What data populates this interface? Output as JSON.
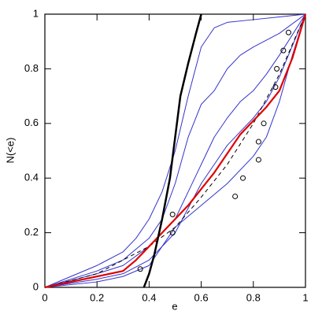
{
  "chart_data": {
    "type": "line",
    "x_label": "e",
    "y_label": "N(<e)",
    "xlim": [
      0,
      1
    ],
    "ylim": [
      0,
      1
    ],
    "xticks": [
      0,
      0.2,
      0.4,
      0.6,
      0.8,
      1
    ],
    "yticks": [
      0,
      0.2,
      0.4,
      0.6,
      0.8,
      1
    ],
    "series": [
      {
        "color": "#3333cc",
        "width": 1,
        "x": [
          0,
          0.1,
          0.2,
          0.3,
          0.35,
          0.4,
          0.45,
          0.5,
          0.55,
          0.6,
          0.65,
          0.7,
          0.8,
          0.9,
          1
        ],
        "values": [
          0,
          0.04,
          0.08,
          0.13,
          0.18,
          0.25,
          0.35,
          0.5,
          0.7,
          0.88,
          0.95,
          0.97,
          0.98,
          0.99,
          1
        ]
      },
      {
        "color": "#3333cc",
        "width": 1,
        "x": [
          0,
          0.2,
          0.3,
          0.4,
          0.45,
          0.5,
          0.55,
          0.6,
          0.65,
          0.7,
          0.75,
          0.8,
          0.9,
          1
        ],
        "values": [
          0,
          0.06,
          0.1,
          0.18,
          0.25,
          0.38,
          0.55,
          0.67,
          0.72,
          0.8,
          0.85,
          0.88,
          0.93,
          1
        ]
      },
      {
        "color": "#3333cc",
        "width": 1,
        "x": [
          0,
          0.2,
          0.3,
          0.4,
          0.45,
          0.5,
          0.55,
          0.6,
          0.65,
          0.7,
          0.75,
          0.8,
          0.85,
          0.9,
          1
        ],
        "values": [
          0,
          0.05,
          0.08,
          0.15,
          0.2,
          0.25,
          0.35,
          0.45,
          0.55,
          0.62,
          0.68,
          0.72,
          0.78,
          0.85,
          1
        ]
      },
      {
        "color": "#3333cc",
        "width": 1,
        "x": [
          0,
          0.2,
          0.3,
          0.4,
          0.5,
          0.6,
          0.65,
          0.7,
          0.75,
          0.8,
          0.85,
          0.9,
          1
        ],
        "values": [
          0,
          0.03,
          0.05,
          0.1,
          0.2,
          0.38,
          0.45,
          0.52,
          0.57,
          0.62,
          0.68,
          0.77,
          1
        ]
      },
      {
        "color": "#3333cc",
        "width": 1,
        "x": [
          0,
          0.2,
          0.3,
          0.4,
          0.45,
          0.5,
          0.6,
          0.7,
          0.8,
          0.85,
          0.9,
          0.95,
          1
        ],
        "values": [
          0,
          0.02,
          0.04,
          0.08,
          0.15,
          0.22,
          0.3,
          0.38,
          0.48,
          0.55,
          0.68,
          0.85,
          1
        ]
      },
      {
        "color": "#000000",
        "width": 1,
        "dash": true,
        "x": [
          0,
          0.2,
          0.4,
          0.5,
          0.6,
          0.7,
          0.8,
          0.9,
          1
        ],
        "values": [
          0,
          0.05,
          0.15,
          0.22,
          0.33,
          0.45,
          0.6,
          0.78,
          1
        ]
      },
      {
        "color": "#e00000",
        "width": 2.2,
        "x": [
          0,
          0.1,
          0.2,
          0.3,
          0.35,
          0.4,
          0.45,
          0.5,
          0.55,
          0.6,
          0.65,
          0.7,
          0.75,
          0.8,
          0.85,
          0.9,
          0.95,
          1
        ],
        "values": [
          0,
          0.02,
          0.04,
          0.06,
          0.1,
          0.15,
          0.2,
          0.25,
          0.3,
          0.36,
          0.42,
          0.49,
          0.56,
          0.61,
          0.66,
          0.72,
          0.84,
          1
        ]
      },
      {
        "color": "#000000",
        "width": 2.5,
        "x": [
          0.38,
          0.4,
          0.42,
          0.45,
          0.48,
          0.5,
          0.52,
          0.55,
          0.58,
          0.6
        ],
        "values": [
          0,
          0.05,
          0.12,
          0.25,
          0.4,
          0.55,
          0.7,
          0.82,
          0.93,
          1
        ]
      },
      {
        "color": "#000000",
        "marker": "circle",
        "x": [
          0.366,
          0.49,
          0.49,
          0.73,
          0.76,
          0.82,
          0.82,
          0.84,
          0.885,
          0.89,
          0.915,
          0.935
        ],
        "values": [
          0.067,
          0.2,
          0.267,
          0.333,
          0.4,
          0.467,
          0.533,
          0.6,
          0.733,
          0.8,
          0.867,
          0.933
        ]
      }
    ]
  }
}
